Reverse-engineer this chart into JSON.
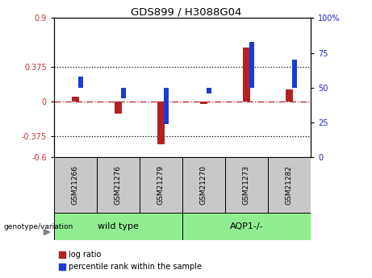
{
  "title": "GDS899 / H3088G04",
  "samples": [
    "GSM21266",
    "GSM21276",
    "GSM21279",
    "GSM21270",
    "GSM21273",
    "GSM21282"
  ],
  "log_ratios": [
    0.05,
    -0.13,
    -0.46,
    -0.03,
    0.58,
    0.13
  ],
  "percentile_ranks": [
    58,
    42,
    24,
    46,
    83,
    70
  ],
  "bar_color_red": "#B22222",
  "bar_color_blue": "#1C3BD4",
  "left_ylim": [
    -0.6,
    0.9
  ],
  "right_ylim": [
    0,
    100
  ],
  "left_yticks": [
    -0.6,
    -0.375,
    0,
    0.375,
    0.9
  ],
  "left_ytick_labels": [
    "-0.6",
    "-0.375",
    "0",
    "0.375",
    "0.9"
  ],
  "right_yticks": [
    0,
    25,
    50,
    75,
    100
  ],
  "right_ytick_labels": [
    "0",
    "25",
    "50",
    "75",
    "100%"
  ],
  "hline_dotted": [
    0.375,
    -0.375
  ],
  "hline_dashdot": 0.0,
  "genotype_label": "genotype/variation",
  "legend_red_label": "log ratio",
  "legend_blue_label": "percentile rank within the sample",
  "group_colors": [
    "#90EE90",
    "#90EE90"
  ],
  "group_labels": [
    "wild type",
    "AQP1-/-"
  ],
  "sample_box_color": "#C8C8C8",
  "red_tick_color": "#CC3333",
  "blue_tick_color": "#2222CC"
}
